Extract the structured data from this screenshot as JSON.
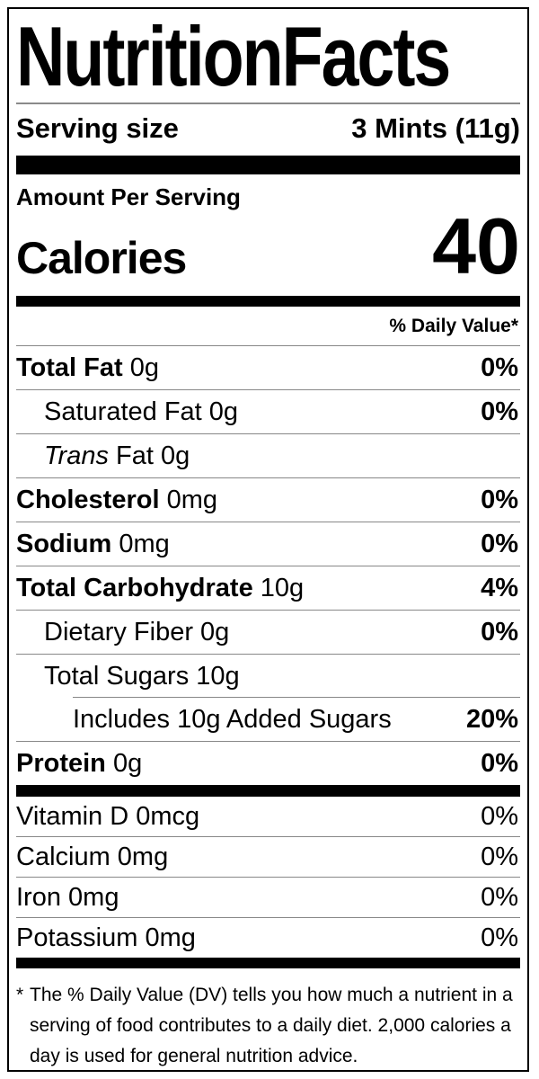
{
  "colors": {
    "text": "#000000",
    "background": "#ffffff",
    "bar": "#000000",
    "hairline": "#888888"
  },
  "title": {
    "word1": "Nutrition",
    "word2": "Facts"
  },
  "serving": {
    "label": "Serving size",
    "value": "3 Mints (11g)"
  },
  "calories": {
    "section_header": "Amount Per Serving",
    "label": "Calories",
    "value": "40"
  },
  "daily_value_header": "% Daily Value*",
  "nutrients": {
    "rows": [
      {
        "bold": "Total Fat",
        "regular": " 0g",
        "dv": "0%",
        "indent": 0
      },
      {
        "regular": "Saturated Fat 0g",
        "dv": "0%",
        "indent": 1
      },
      {
        "italic": "Trans",
        "regular": " Fat 0g",
        "dv": "",
        "indent": 1
      },
      {
        "bold": "Cholesterol",
        "regular": " 0mg",
        "dv": "0%",
        "indent": 0
      },
      {
        "bold": "Sodium",
        "regular": " 0mg",
        "dv": "0%",
        "indent": 0
      },
      {
        "bold": "Total Carbohydrate",
        "regular": " 10g",
        "dv": "4%",
        "indent": 0
      },
      {
        "regular": "Dietary Fiber 0g",
        "dv": "0%",
        "indent": 1
      },
      {
        "regular": "Total Sugars 10g",
        "dv": "",
        "indent": 1
      },
      {
        "regular": "Includes 10g Added Sugars",
        "dv": "20%",
        "indent": 2,
        "rule_indent": true
      },
      {
        "bold": "Protein",
        "regular": " 0g",
        "dv": "0%",
        "indent": 0
      }
    ]
  },
  "vitamins": {
    "rows": [
      {
        "regular": "Vitamin D 0mcg",
        "dv": "0%"
      },
      {
        "regular": "Calcium 0mg",
        "dv": "0%"
      },
      {
        "regular": "Iron 0mg",
        "dv": "0%"
      },
      {
        "regular": "Potassium 0mg",
        "dv": "0%"
      }
    ]
  },
  "footnote": {
    "marker": "*",
    "lines": [
      "The % Daily Value (DV) tells you how much a nutrient in a",
      "serving of food contributes to a daily diet. 2,000 calories a",
      "day is used for general nutrition advice."
    ]
  }
}
